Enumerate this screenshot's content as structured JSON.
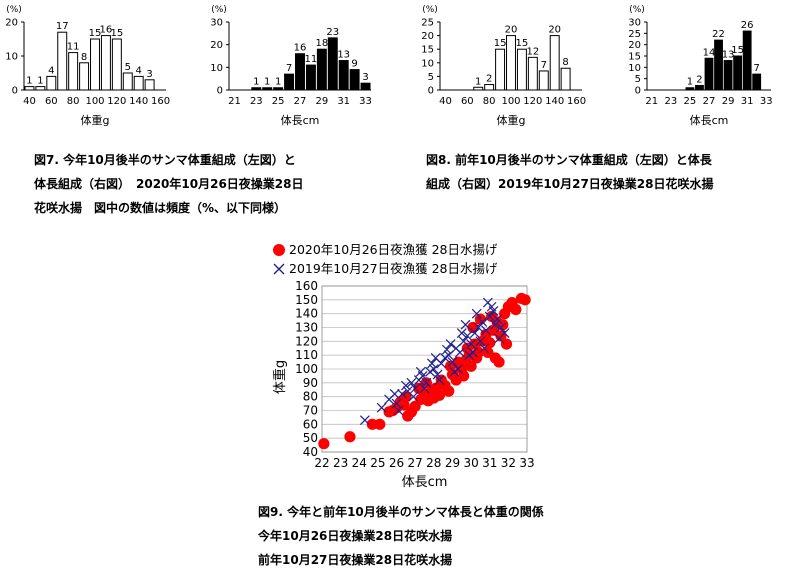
{
  "captions": {
    "fig7": [
      "図7. 今年10月後半のサンマ体重組成（左図）と",
      "体長組成（右図）　2020年10月26日夜操業28日",
      "花咲水揚　図中の数値は頻度（%、以下同様）"
    ],
    "fig8": [
      "図8. 前年10月後半のサンマ体重組成（左図）と体長",
      "組成（右図）2019年10月27日夜操業28日花咲水揚"
    ],
    "fig9": [
      "図9. 今年と前年10月後半のサンマ体長と体重の関係",
      "今年10月26日夜操業28日花咲水揚",
      "前年10月27日夜操業28日花咲水揚"
    ]
  },
  "colors": {
    "scatter2020": "#ff0000",
    "scatter2019": "#1f1f8f",
    "bar_black": "#000000",
    "bar_white": "#ffffff"
  },
  "chart_data": [
    {
      "id": "fig7-weight",
      "type": "bar",
      "fill": "white",
      "ylabel": "(%)",
      "xlabel": "体重g",
      "ylim": [
        0,
        20
      ],
      "yticks": [
        0,
        10,
        20
      ],
      "xticks": [
        40,
        60,
        80,
        100,
        120,
        140,
        160
      ],
      "xrange": [
        35,
        165
      ],
      "bars": [
        {
          "x": 40,
          "v": 1,
          "label": "1"
        },
        {
          "x": 50,
          "v": 1,
          "label": "1"
        },
        {
          "x": 60,
          "v": 4,
          "label": "4"
        },
        {
          "x": 70,
          "v": 17,
          "label": "17"
        },
        {
          "x": 80,
          "v": 11,
          "label": "11"
        },
        {
          "x": 90,
          "v": 8,
          "label": "8"
        },
        {
          "x": 100,
          "v": 15,
          "label": "15"
        },
        {
          "x": 110,
          "v": 16,
          "label": "16"
        },
        {
          "x": 120,
          "v": 15,
          "label": "15"
        },
        {
          "x": 130,
          "v": 5,
          "label": "5"
        },
        {
          "x": 140,
          "v": 4,
          "label": "4"
        },
        {
          "x": 150,
          "v": 3,
          "label": "3"
        }
      ]
    },
    {
      "id": "fig7-length",
      "type": "bar",
      "fill": "black",
      "ylabel": "(%)",
      "xlabel": "体長cm",
      "ylim": [
        0,
        30
      ],
      "yticks": [
        0,
        10,
        20,
        30
      ],
      "xticks": [
        21,
        23,
        25,
        27,
        29,
        31,
        33
      ],
      "xrange": [
        20.5,
        33.5
      ],
      "bars": [
        {
          "x": 23,
          "v": 1,
          "label": "1"
        },
        {
          "x": 24,
          "v": 1,
          "label": "1"
        },
        {
          "x": 25,
          "v": 1,
          "label": "1"
        },
        {
          "x": 26,
          "v": 7,
          "label": "7"
        },
        {
          "x": 27,
          "v": 16,
          "label": "16"
        },
        {
          "x": 28,
          "v": 11,
          "label": "11"
        },
        {
          "x": 29,
          "v": 18,
          "label": "18"
        },
        {
          "x": 30,
          "v": 23,
          "label": "23"
        },
        {
          "x": 31,
          "v": 13,
          "label": "13"
        },
        {
          "x": 32,
          "v": 9,
          "label": "9"
        },
        {
          "x": 33,
          "v": 3,
          "label": "3"
        }
      ]
    },
    {
      "id": "fig8-weight",
      "type": "bar",
      "fill": "white",
      "ylabel": "(%)",
      "xlabel": "体重g",
      "ylim": [
        0,
        25
      ],
      "yticks": [
        0,
        5,
        10,
        15,
        20,
        25
      ],
      "xticks": [
        40,
        60,
        80,
        100,
        120,
        140,
        160
      ],
      "xrange": [
        35,
        165
      ],
      "bars": [
        {
          "x": 70,
          "v": 1,
          "label": "1"
        },
        {
          "x": 80,
          "v": 2,
          "label": "2"
        },
        {
          "x": 90,
          "v": 15,
          "label": "15"
        },
        {
          "x": 100,
          "v": 20,
          "label": "20"
        },
        {
          "x": 110,
          "v": 15,
          "label": "15"
        },
        {
          "x": 120,
          "v": 12,
          "label": "12"
        },
        {
          "x": 130,
          "v": 7,
          "label": "7"
        },
        {
          "x": 140,
          "v": 20,
          "label": "20"
        },
        {
          "x": 150,
          "v": 8,
          "label": "8"
        }
      ]
    },
    {
      "id": "fig8-length",
      "type": "bar",
      "fill": "black",
      "ylabel": "(%)",
      "xlabel": "体長cm",
      "ylim": [
        0,
        30
      ],
      "yticks": [
        0,
        5,
        10,
        15,
        20,
        25,
        30
      ],
      "xticks": [
        21,
        23,
        25,
        27,
        29,
        31,
        33
      ],
      "xrange": [
        20.5,
        33.5
      ],
      "bars": [
        {
          "x": 25,
          "v": 1,
          "label": "1"
        },
        {
          "x": 26,
          "v": 2,
          "label": "2"
        },
        {
          "x": 27,
          "v": 14,
          "label": "14"
        },
        {
          "x": 28,
          "v": 22,
          "label": "22"
        },
        {
          "x": 29,
          "v": 13,
          "label": "13"
        },
        {
          "x": 30,
          "v": 15,
          "label": "15"
        },
        {
          "x": 31,
          "v": 26,
          "label": "26"
        },
        {
          "x": 32,
          "v": 7,
          "label": "7"
        }
      ]
    },
    {
      "id": "fig9-scatter",
      "type": "scatter",
      "xlabel": "体長cm",
      "ylabel": "体重g",
      "xlim": [
        22,
        33
      ],
      "ylim": [
        40,
        160
      ],
      "xticks": [
        22,
        23,
        24,
        25,
        26,
        27,
        28,
        29,
        30,
        31,
        32,
        33
      ],
      "yticks": [
        40,
        50,
        60,
        70,
        80,
        90,
        100,
        110,
        120,
        130,
        140,
        150,
        160
      ],
      "legend_position": "top-left",
      "series": [
        {
          "name": "2020年10月26日夜漁獲 28日水揚げ",
          "marker": "circle",
          "points": [
            [
              22.1,
              46
            ],
            [
              23.5,
              51
            ],
            [
              24.7,
              60
            ],
            [
              25.1,
              60
            ],
            [
              25.6,
              69
            ],
            [
              25.8,
              70
            ],
            [
              26,
              72
            ],
            [
              26.2,
              76
            ],
            [
              26.4,
              74
            ],
            [
              26.6,
              66
            ],
            [
              26.8,
              69
            ],
            [
              27,
              73
            ],
            [
              27.3,
              78
            ],
            [
              27.5,
              82
            ],
            [
              27.7,
              77
            ],
            [
              27.9,
              84
            ],
            [
              28.1,
              86
            ],
            [
              28.3,
              81
            ],
            [
              28.6,
              88
            ],
            [
              28.8,
              84
            ],
            [
              29,
              96
            ],
            [
              29.2,
              92
            ],
            [
              29.3,
              105
            ],
            [
              29.5,
              100
            ],
            [
              29.7,
              106
            ],
            [
              29.9,
              110
            ],
            [
              30,
              102
            ],
            [
              30.2,
              118
            ],
            [
              30.4,
              112
            ],
            [
              30.6,
              120
            ],
            [
              30.8,
              125
            ],
            [
              31,
              119
            ],
            [
              31.2,
              128
            ],
            [
              31.4,
              134
            ],
            [
              31.6,
              124
            ],
            [
              31.8,
              140
            ],
            [
              32,
              145
            ],
            [
              32.2,
              148
            ],
            [
              32.4,
              143
            ],
            [
              32.7,
              151
            ],
            [
              32.9,
              150
            ],
            [
              30.9,
              112
            ],
            [
              31.3,
              108
            ],
            [
              31.5,
              105
            ],
            [
              29.6,
              95
            ],
            [
              28.4,
              92
            ],
            [
              27.2,
              86
            ],
            [
              26.5,
              80
            ],
            [
              30.1,
              130
            ],
            [
              30.5,
              136
            ],
            [
              29.8,
              115
            ],
            [
              28.9,
              102
            ],
            [
              31.7,
              132
            ],
            [
              31.1,
              138
            ],
            [
              28,
              79
            ],
            [
              27.6,
              90
            ],
            [
              30.3,
              108
            ],
            [
              31.9,
              118
            ]
          ]
        },
        {
          "name": "2019年10月27日夜漁獲 28日水揚げ",
          "marker": "x",
          "points": [
            [
              24.3,
              63
            ],
            [
              25.2,
              72
            ],
            [
              25.6,
              78
            ],
            [
              26,
              75
            ],
            [
              26.3,
              82
            ],
            [
              26.6,
              84
            ],
            [
              26.8,
              90
            ],
            [
              27,
              86
            ],
            [
              27.2,
              92
            ],
            [
              27.4,
              95
            ],
            [
              27.6,
              90
            ],
            [
              27.8,
              98
            ],
            [
              28,
              100
            ],
            [
              28.2,
              96
            ],
            [
              28.4,
              104
            ],
            [
              28.6,
              108
            ],
            [
              28.8,
              110
            ],
            [
              29,
              105
            ],
            [
              29.2,
              115
            ],
            [
              29.4,
              112
            ],
            [
              29.6,
              120
            ],
            [
              29.8,
              124
            ],
            [
              30,
              118
            ],
            [
              30.2,
              126
            ],
            [
              30.4,
              130
            ],
            [
              30.6,
              134
            ],
            [
              30.8,
              128
            ],
            [
              31,
              138
            ],
            [
              31.2,
              142
            ],
            [
              31.4,
              136
            ],
            [
              31.6,
              130
            ],
            [
              31.8,
              126
            ],
            [
              26.9,
              80
            ],
            [
              27.5,
              86
            ],
            [
              28.3,
              92
            ],
            [
              29.1,
              98
            ],
            [
              29.9,
              110
            ],
            [
              30.5,
              120
            ],
            [
              31.1,
              145
            ],
            [
              30.9,
              148
            ],
            [
              30.3,
              140
            ],
            [
              29.7,
              132
            ],
            [
              28.9,
              118
            ],
            [
              28.1,
              108
            ],
            [
              27.3,
              98
            ],
            [
              26.5,
              88
            ],
            [
              25.9,
              82
            ],
            [
              30.7,
              115
            ],
            [
              31.5,
              122
            ],
            [
              29.5,
              126
            ],
            [
              28.7,
              114
            ],
            [
              27.9,
              104
            ],
            [
              30.1,
              112
            ],
            [
              31.3,
              132
            ],
            [
              29.3,
              100
            ],
            [
              26.1,
              70
            ]
          ]
        }
      ]
    }
  ]
}
